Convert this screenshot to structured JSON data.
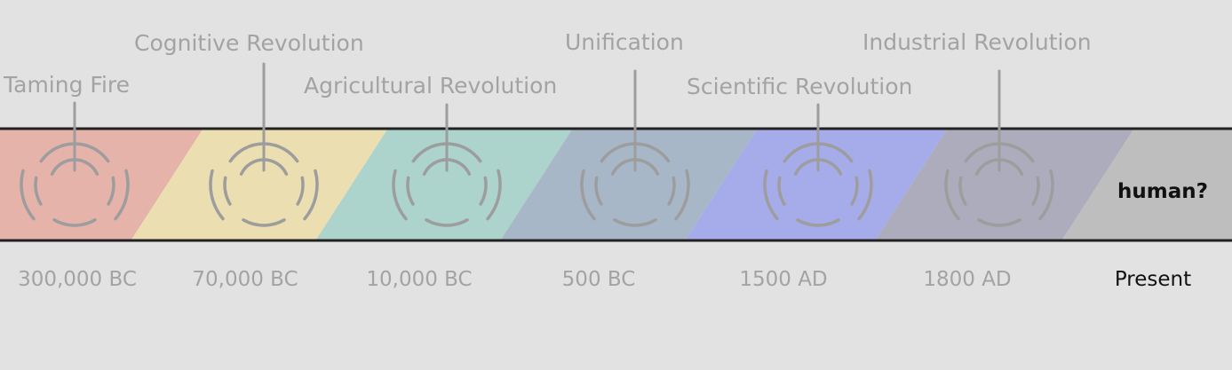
{
  "colors": {
    "background": "#e2e2e2",
    "label_text": "#a3a3a3",
    "emphasis_text": "#111111",
    "icon_stroke": "#9d9d9d",
    "band_border": "#222222"
  },
  "eras": [
    {
      "id": "taming-fire",
      "label": "Taming Fire",
      "date": "300,000 BC",
      "color": "#e6b3ab",
      "icon": "ripple-icon"
    },
    {
      "id": "cognitive-revolution",
      "label": "Cognitive Revolution",
      "date": "70,000 BC",
      "color": "#ebdfb1",
      "icon": "ripple-icon"
    },
    {
      "id": "agricultural-revolution",
      "label": "Agricultural Revolution",
      "date": "10,000 BC",
      "color": "#acd3cc",
      "icon": "ripple-icon"
    },
    {
      "id": "unification",
      "label": "Unification",
      "date": "500 BC",
      "color": "#a8b7c8",
      "icon": "ripple-icon"
    },
    {
      "id": "scientific-revolution",
      "label": "Scientific Revolution",
      "date": "1500 AD",
      "color": "#a6ace9",
      "icon": "ripple-icon"
    },
    {
      "id": "industrial-revolution",
      "label": "Industrial Revolution",
      "date": "1800 AD",
      "color": "#adacbc",
      "icon": "ripple-icon"
    }
  ],
  "final_segment": {
    "label": "human?",
    "date": "Present",
    "color": "#bebebe"
  }
}
